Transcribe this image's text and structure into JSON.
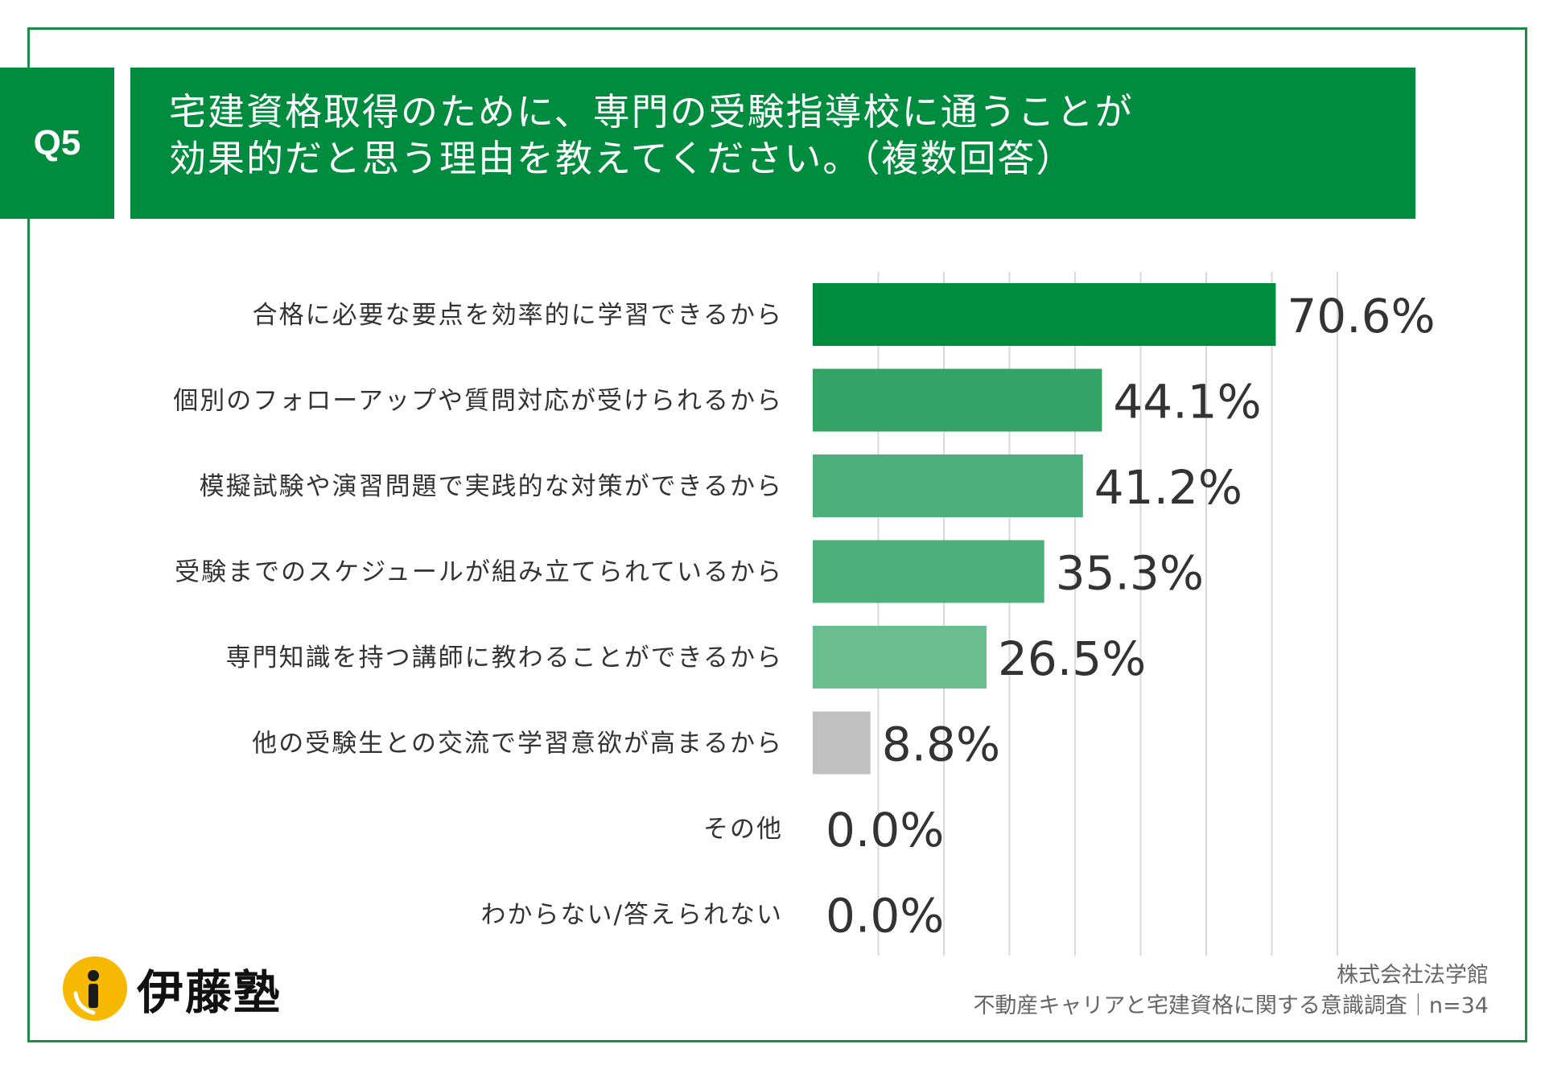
{
  "question": {
    "badge": "Q5",
    "line1": "宅建資格取得のために、専門の受験指導校に通うことが",
    "line2": "効果的だと思う理由を教えてください。（複数回答）"
  },
  "colors": {
    "brand_green": "#008c3e",
    "frame": "#1e8a48",
    "gridline": "#d9d9d9"
  },
  "chart_data": {
    "type": "bar",
    "orientation": "horizontal",
    "title": "宅建資格取得のために、専門の受験指導校に通うことが効果的だと思う理由を教えてください。（複数回答）",
    "xlim": [
      0,
      80
    ],
    "grid": true,
    "categories": [
      "合格に必要な要点を効率的に学習できるから",
      "個別のフォローアップや質問対応が受けられるから",
      "模擬試験や演習問題で実践的な対策ができるから",
      "受験までのスケジュールが組み立てられているから",
      "専門知識を持つ講師に教わることができるから",
      "他の受験生との交流で学習意欲が高まるから",
      "その他",
      "わからない/答えられない"
    ],
    "values": [
      70.6,
      44.1,
      41.2,
      35.3,
      26.5,
      8.8,
      0.0,
      0.0
    ],
    "value_labels": [
      "70.6%",
      "44.1%",
      "41.2%",
      "35.3%",
      "26.5%",
      "8.8%",
      "0.0%",
      "0.0%"
    ],
    "bar_colors": [
      "#008c3e",
      "#33a366",
      "#4db07a",
      "#4db07a",
      "#6abd8e",
      "#c0c0c0",
      "#c0c0c0",
      "#c0c0c0"
    ]
  },
  "logo": {
    "name": "伊藤塾"
  },
  "footer": {
    "company": "株式会社法学館",
    "survey": "不動産キャリアと宅建資格に関する意識調査｜n=34"
  }
}
